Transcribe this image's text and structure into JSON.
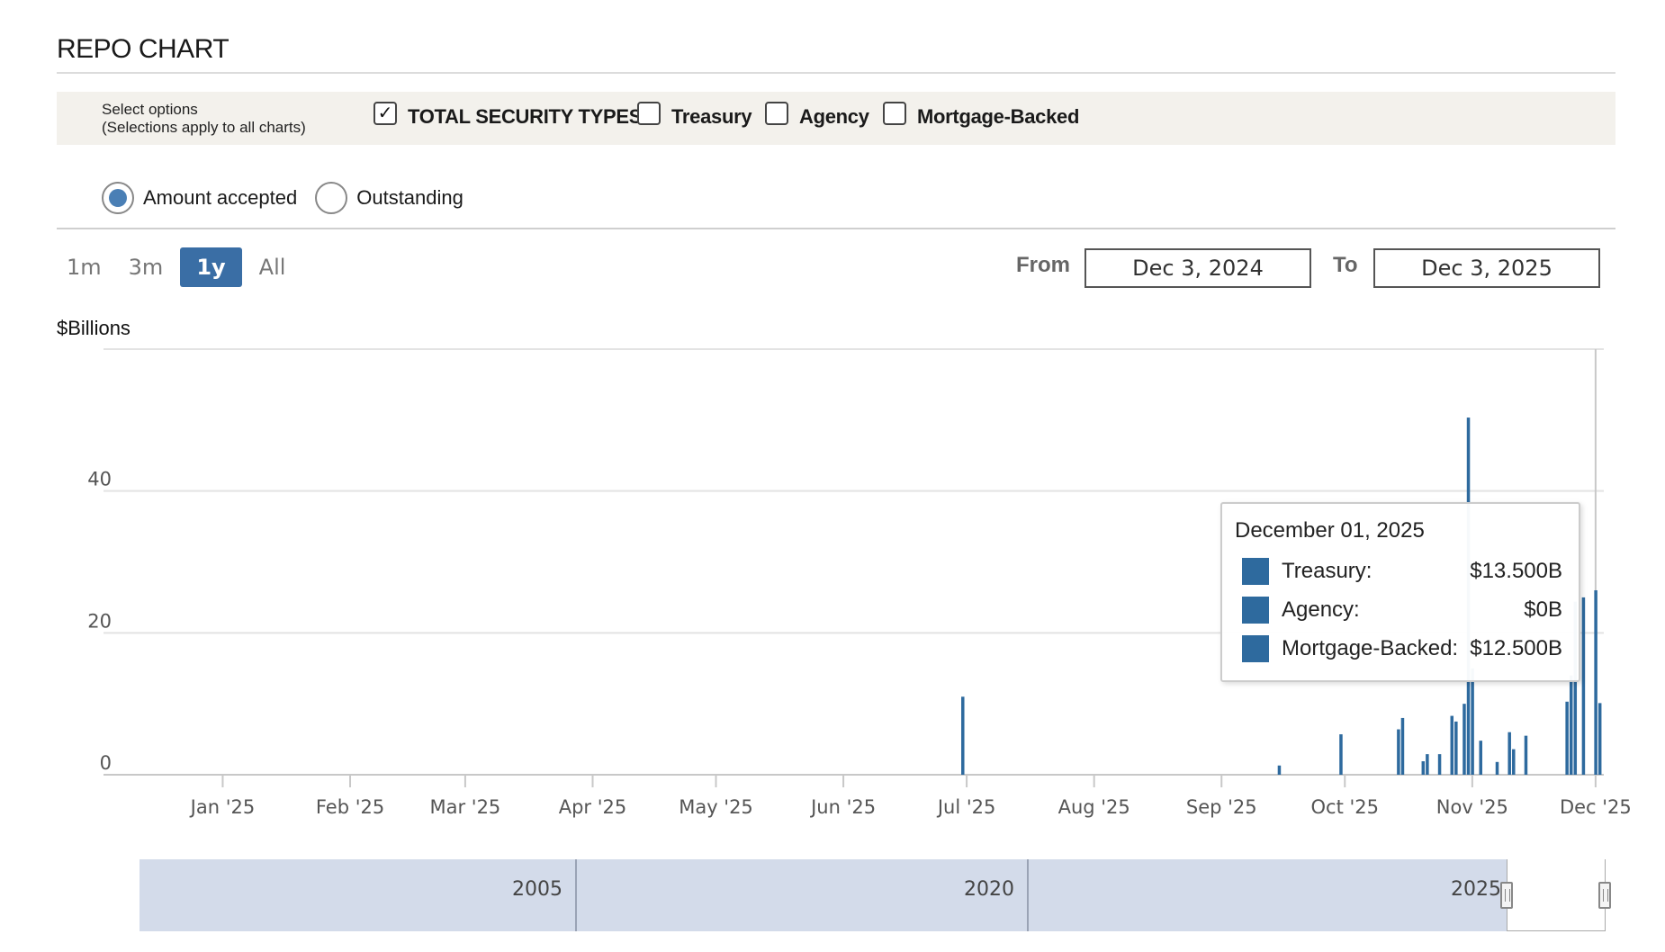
{
  "title": "REPO CHART",
  "options": {
    "label_line1": "Select options",
    "label_line2": "(Selections apply to all charts)",
    "checkboxes": [
      {
        "label": "TOTAL SECURITY TYPES",
        "checked": true
      },
      {
        "label": "Treasury",
        "checked": false
      },
      {
        "label": "Agency",
        "checked": false
      },
      {
        "label": "Mortgage-Backed",
        "checked": false
      }
    ]
  },
  "radios": [
    {
      "label": "Amount accepted",
      "selected": true
    },
    {
      "label": "Outstanding",
      "selected": false
    }
  ],
  "range_buttons": [
    {
      "label": "1m",
      "active": false
    },
    {
      "label": "3m",
      "active": false
    },
    {
      "label": "1y",
      "active": true
    },
    {
      "label": "All",
      "active": false
    }
  ],
  "date_range": {
    "from_label": "From",
    "from_value": "Dec 3, 2024",
    "to_label": "To",
    "to_value": "Dec 3, 2025"
  },
  "colors": {
    "bar": "#2e6a9e",
    "active_button": "#3a6ea5",
    "navigator": "#d3dbea"
  },
  "chart_data": {
    "type": "bar",
    "title": "",
    "ylabel": "$Billions",
    "xlabel": "",
    "ylim": [
      0,
      60
    ],
    "yticks": [
      0,
      20,
      40
    ],
    "grid": true,
    "x_range": [
      "2024-12-03",
      "2025-12-03"
    ],
    "xticks": [
      {
        "date": "2025-01-01",
        "label": "Jan '25"
      },
      {
        "date": "2025-02-01",
        "label": "Feb '25"
      },
      {
        "date": "2025-03-01",
        "label": "Mar '25"
      },
      {
        "date": "2025-04-01",
        "label": "Apr '25"
      },
      {
        "date": "2025-05-01",
        "label": "May '25"
      },
      {
        "date": "2025-06-01",
        "label": "Jun '25"
      },
      {
        "date": "2025-07-01",
        "label": "Jul '25"
      },
      {
        "date": "2025-08-01",
        "label": "Aug '25"
      },
      {
        "date": "2025-09-01",
        "label": "Sep '25"
      },
      {
        "date": "2025-10-01",
        "label": "Oct '25"
      },
      {
        "date": "2025-11-01",
        "label": "Nov '25"
      },
      {
        "date": "2025-12-01",
        "label": "Dec '25"
      }
    ],
    "series": [
      {
        "values": [
          {
            "date": "2025-06-30",
            "value": 11
          },
          {
            "date": "2025-09-15",
            "value": 1.3
          },
          {
            "date": "2025-09-30",
            "value": 5.7
          },
          {
            "date": "2025-10-14",
            "value": 6.4
          },
          {
            "date": "2025-10-15",
            "value": 8.0
          },
          {
            "date": "2025-10-20",
            "value": 1.9
          },
          {
            "date": "2025-10-21",
            "value": 2.9
          },
          {
            "date": "2025-10-24",
            "value": 2.9
          },
          {
            "date": "2025-10-27",
            "value": 8.3
          },
          {
            "date": "2025-10-28",
            "value": 7.5
          },
          {
            "date": "2025-10-30",
            "value": 10.0
          },
          {
            "date": "2025-10-31",
            "value": 50.35
          },
          {
            "date": "2025-11-01",
            "value": 15.0
          },
          {
            "date": "2025-11-03",
            "value": 4.8
          },
          {
            "date": "2025-11-07",
            "value": 1.8
          },
          {
            "date": "2025-11-10",
            "value": 6.0
          },
          {
            "date": "2025-11-11",
            "value": 3.6
          },
          {
            "date": "2025-11-14",
            "value": 5.5
          },
          {
            "date": "2025-11-24",
            "value": 10.3
          },
          {
            "date": "2025-11-25",
            "value": 14.0
          },
          {
            "date": "2025-11-26",
            "value": 24.4
          },
          {
            "date": "2025-11-28",
            "value": 25.0
          },
          {
            "date": "2025-12-01",
            "value": 26.0
          },
          {
            "date": "2025-12-02",
            "value": 10.1
          }
        ]
      }
    ]
  },
  "tooltip": {
    "date": "December 01, 2025",
    "rows": [
      {
        "name": "Treasury:",
        "value": "$13.500B"
      },
      {
        "name": "Agency:",
        "value": "$0B"
      },
      {
        "name": "Mortgage-Backed:",
        "value": "$12.500B"
      }
    ]
  },
  "navigator": {
    "labels": [
      "2005",
      "2020",
      "2025"
    ]
  }
}
